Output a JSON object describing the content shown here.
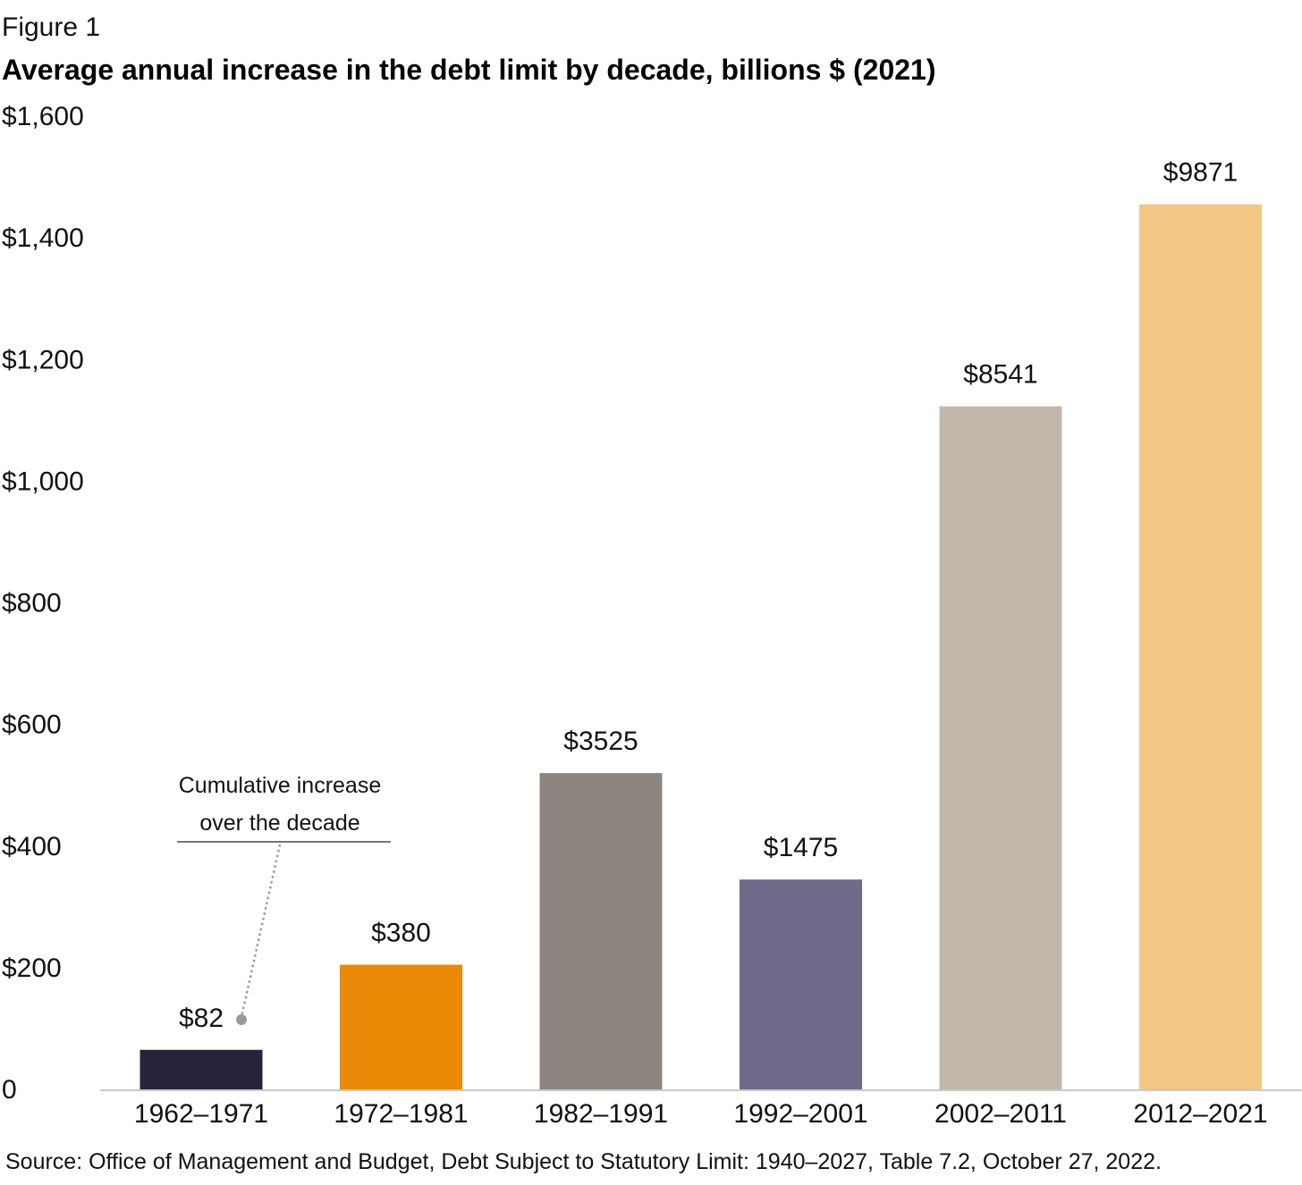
{
  "figure_label": "Figure 1",
  "source": "Source: Office of Management and Budget, Debt Subject to Statutory Limit: 1940–2027, Table 7.2, October 27, 2022.",
  "chart_data": {
    "type": "bar",
    "title": "Average annual increase in the debt limit by decade, billions $ (2021)",
    "xlabel": "",
    "ylabel": "",
    "ylim": [
      0,
      1600
    ],
    "y_ticks": [
      0,
      200,
      400,
      600,
      800,
      1000,
      1200,
      1400,
      1600
    ],
    "y_tick_labels": [
      "0",
      "$200",
      "$400",
      "$600",
      "$800",
      "$1,000",
      "$1,200",
      "$1,400",
      "$1,600"
    ],
    "grid": false,
    "categories": [
      "1962–1971",
      "1972–1981",
      "1982–1991",
      "1992–2001",
      "2002–2011",
      "2012–2021"
    ],
    "values": [
      65,
      205,
      520,
      345,
      1123,
      1455
    ],
    "data_labels": [
      "$82",
      "$380",
      "$3525",
      "$1475",
      "$8541",
      "$9871"
    ],
    "colors": [
      "#262239",
      "#ea8a06",
      "#8d857d",
      "#726a8a",
      "#c1b8ab",
      "#f2c784"
    ],
    "annotation": {
      "lines": [
        "Cumulative increase",
        "over the decade"
      ],
      "target_category": "1962–1971"
    }
  }
}
